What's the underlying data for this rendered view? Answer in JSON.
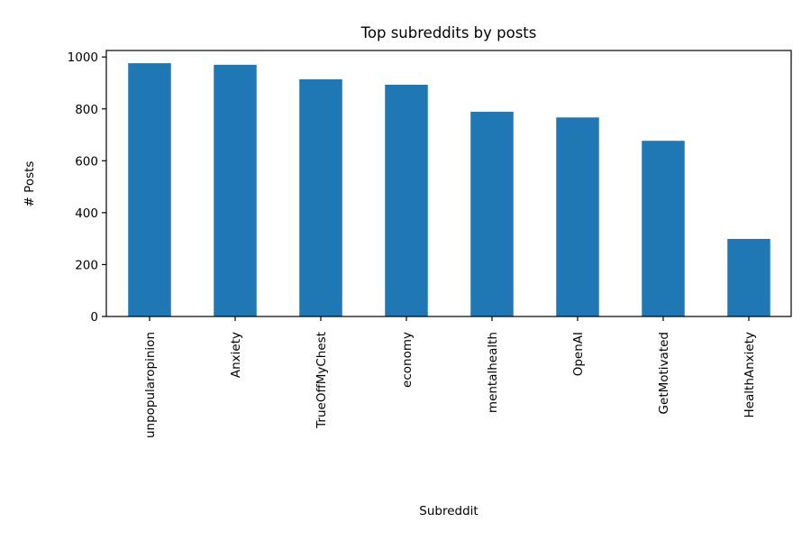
{
  "chart_data": {
    "type": "bar",
    "title": "Top subreddits by posts",
    "xlabel": "Subreddit",
    "ylabel": "# Posts",
    "categories": [
      "unpopularopinion",
      "Anxiety",
      "TrueOffMyChest",
      "economy",
      "mentalhealth",
      "OpenAI",
      "GetMotivated",
      "HealthAnxiety"
    ],
    "values": [
      976,
      970,
      914,
      893,
      789,
      767,
      677,
      299
    ],
    "ylim": [
      0,
      1025
    ],
    "yticks": [
      0,
      200,
      400,
      600,
      800,
      1000
    ],
    "bar_color": "#1f77b4",
    "grid": false,
    "legend": "none"
  }
}
